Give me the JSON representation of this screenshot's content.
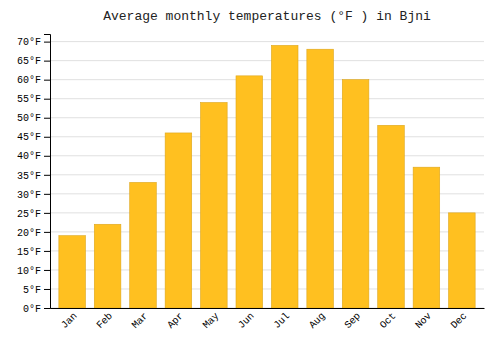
{
  "chart_data": {
    "type": "bar",
    "title": "Average monthly temperatures (°F ) in Bjni",
    "categories": [
      "Jan",
      "Feb",
      "Mar",
      "Apr",
      "May",
      "Jun",
      "Jul",
      "Aug",
      "Sep",
      "Oct",
      "Nov",
      "Dec"
    ],
    "values": [
      19,
      22,
      33,
      46,
      54,
      61,
      69,
      68,
      60,
      48,
      37,
      25
    ],
    "color": "#FFC020",
    "ylim": [
      0,
      72
    ],
    "yticks": [
      {
        "value": 0,
        "label": "0°F"
      },
      {
        "value": 5,
        "label": "5°F"
      },
      {
        "value": 10,
        "label": "10°F"
      },
      {
        "value": 15,
        "label": "15°F"
      },
      {
        "value": 20,
        "label": "20°F"
      },
      {
        "value": 25,
        "label": "25°F"
      },
      {
        "value": 30,
        "label": "30°F"
      },
      {
        "value": 35,
        "label": "35°F"
      },
      {
        "value": 40,
        "label": "40°F"
      },
      {
        "value": 45,
        "label": "45°F"
      },
      {
        "value": 50,
        "label": "50°F"
      },
      {
        "value": 55,
        "label": "55°F"
      },
      {
        "value": 60,
        "label": "60°F"
      },
      {
        "value": 65,
        "label": "65°F"
      },
      {
        "value": 70,
        "label": "70°F"
      }
    ],
    "grid": true
  }
}
